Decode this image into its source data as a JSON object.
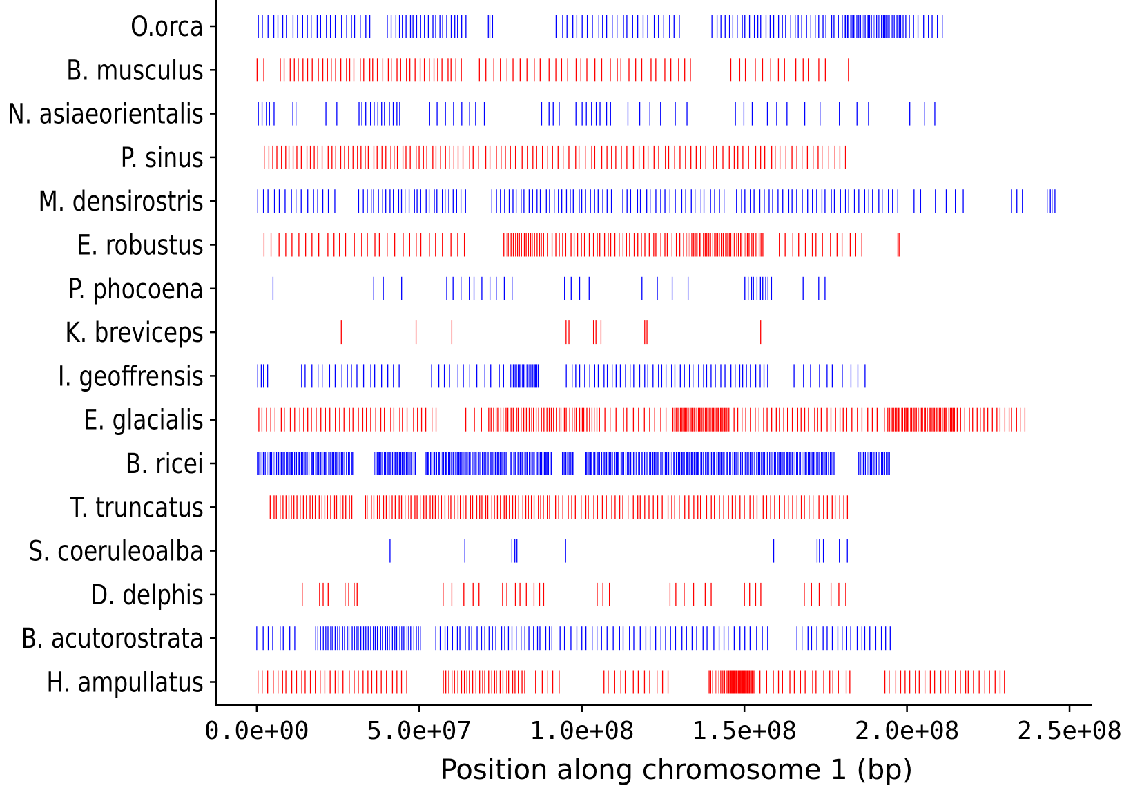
{
  "chart_data": {
    "type": "strip",
    "title": "",
    "xlabel": "Position along chromosome 1 (bp)",
    "ylabel": "",
    "xlim": [
      -12500000,
      257000000
    ],
    "x_ticks": [
      0,
      50000000,
      100000000,
      150000000,
      200000000,
      250000000
    ],
    "x_tick_labels": [
      "0.0e+00",
      "5.0e+07",
      "1.0e+08",
      "1.5e+08",
      "2.0e+08",
      "2.5e+08"
    ],
    "colors": {
      "blue": "#0000ff",
      "red": "#ff0000"
    },
    "series": [
      {
        "name": "O.orca",
        "color": "blue",
        "ranges": [
          [
            0,
            36000000,
            24
          ],
          [
            40000000,
            65000000,
            22
          ],
          [
            71000000,
            73000000,
            3
          ],
          [
            92000000,
            131000000,
            25
          ],
          [
            140000000,
            180000000,
            32
          ],
          [
            180000000,
            200000000,
            40
          ],
          [
            200000000,
            212000000,
            8
          ]
        ]
      },
      {
        "name": "B. musculus",
        "color": "red",
        "ranges": [
          [
            0,
            3000000,
            2
          ],
          [
            7000000,
            64000000,
            40
          ],
          [
            68000000,
            135000000,
            32
          ],
          [
            145000000,
            177000000,
            13
          ],
          [
            182000000,
            183000000,
            1
          ]
        ]
      },
      {
        "name": "N. asiaeorientalis",
        "color": "blue",
        "ranges": [
          [
            0,
            6000000,
            5
          ],
          [
            11000000,
            13000000,
            2
          ],
          [
            21000000,
            26000000,
            2
          ],
          [
            31000000,
            45000000,
            12
          ],
          [
            53000000,
            72000000,
            8
          ],
          [
            87000000,
            95000000,
            4
          ],
          [
            98000000,
            110000000,
            8
          ],
          [
            113000000,
            135000000,
            6
          ],
          [
            146000000,
            165000000,
            6
          ],
          [
            168000000,
            192000000,
            5
          ],
          [
            200000000,
            211000000,
            3
          ]
        ]
      },
      {
        "name": "P. sinus",
        "color": "red",
        "ranges": [
          [
            2000000,
            60000000,
            45
          ],
          [
            60000000,
            182000000,
            75
          ]
        ]
      },
      {
        "name": "M. densirostris",
        "color": "blue",
        "ranges": [
          [
            0,
            25000000,
            15
          ],
          [
            31000000,
            65000000,
            28
          ],
          [
            72000000,
            110000000,
            30
          ],
          [
            112000000,
            145000000,
            22
          ],
          [
            147000000,
            198000000,
            35
          ],
          [
            201000000,
            220000000,
            6
          ],
          [
            232000000,
            237000000,
            3
          ],
          [
            243000000,
            246000000,
            4
          ]
        ]
      },
      {
        "name": "E. robustus",
        "color": "red",
        "ranges": [
          [
            2000000,
            65000000,
            30
          ],
          [
            76000000,
            88000000,
            18
          ],
          [
            88000000,
            132000000,
            38
          ],
          [
            132000000,
            156000000,
            42
          ],
          [
            160000000,
            188000000,
            14
          ],
          [
            197000000,
            198000000,
            2
          ]
        ]
      },
      {
        "name": "P. phocoena",
        "color": "blue",
        "ranges": [
          [
            5000000,
            6000000,
            1
          ],
          [
            34000000,
            48000000,
            3
          ],
          [
            58000000,
            80000000,
            10
          ],
          [
            94000000,
            104000000,
            4
          ],
          [
            117000000,
            137000000,
            4
          ],
          [
            150000000,
            159000000,
            10
          ],
          [
            168000000,
            178000000,
            3
          ]
        ]
      },
      {
        "name": "K. breviceps",
        "color": "red",
        "ranges": [
          [
            26000000,
            27000000,
            1
          ],
          [
            49000000,
            50000000,
            1
          ],
          [
            60000000,
            61000000,
            1
          ],
          [
            95000000,
            97000000,
            2
          ],
          [
            103000000,
            107000000,
            3
          ],
          [
            119000000,
            121000000,
            2
          ],
          [
            155000000,
            156000000,
            1
          ]
        ]
      },
      {
        "name": "I. geoffrensis",
        "color": "blue",
        "ranges": [
          [
            0,
            4000000,
            4
          ],
          [
            13000000,
            45000000,
            18
          ],
          [
            53000000,
            78000000,
            12
          ],
          [
            78000000,
            87000000,
            20
          ],
          [
            95000000,
            148000000,
            38
          ],
          [
            148000000,
            158000000,
            8
          ],
          [
            165000000,
            189000000,
            10
          ]
        ]
      },
      {
        "name": "E. glacialis",
        "color": "red",
        "ranges": [
          [
            0,
            56000000,
            40
          ],
          [
            63000000,
            71000000,
            3
          ],
          [
            71000000,
            106000000,
            45
          ],
          [
            107000000,
            127000000,
            12
          ],
          [
            128000000,
            145000000,
            40
          ],
          [
            145000000,
            184000000,
            30
          ],
          [
            184000000,
            194000000,
            6
          ],
          [
            194000000,
            215000000,
            45
          ],
          [
            215000000,
            237000000,
            18
          ]
        ]
      },
      {
        "name": "B. ricei",
        "color": "blue",
        "ranges": [
          [
            0,
            30000000,
            60
          ],
          [
            36000000,
            49000000,
            30
          ],
          [
            52000000,
            77000000,
            55
          ],
          [
            78000000,
            91000000,
            30
          ],
          [
            94000000,
            98000000,
            8
          ],
          [
            101000000,
            160000000,
            120
          ],
          [
            160000000,
            178000000,
            40
          ],
          [
            185000000,
            195000000,
            20
          ]
        ]
      },
      {
        "name": "T. truncatus",
        "color": "red",
        "ranges": [
          [
            4000000,
            30000000,
            28
          ],
          [
            33000000,
            90000000,
            60
          ],
          [
            90000000,
            183000000,
            70
          ]
        ]
      },
      {
        "name": "S. coeruleoalba",
        "color": "blue",
        "ranges": [
          [
            41000000,
            42000000,
            1
          ],
          [
            64000000,
            65000000,
            1
          ],
          [
            78000000,
            81000000,
            3
          ],
          [
            95000000,
            96000000,
            1
          ],
          [
            159000000,
            160000000,
            1
          ],
          [
            172000000,
            175000000,
            3
          ],
          [
            178000000,
            183000000,
            2
          ]
        ]
      },
      {
        "name": "D. delphis",
        "color": "red",
        "ranges": [
          [
            14000000,
            15000000,
            1
          ],
          [
            19000000,
            23000000,
            3
          ],
          [
            27000000,
            32000000,
            4
          ],
          [
            57000000,
            71000000,
            5
          ],
          [
            75000000,
            90000000,
            8
          ],
          [
            104000000,
            110000000,
            3
          ],
          [
            126000000,
            142000000,
            6
          ],
          [
            150000000,
            156000000,
            4
          ],
          [
            168000000,
            183000000,
            6
          ]
        ]
      },
      {
        "name": "B. acutorostrata",
        "color": "blue",
        "ranges": [
          [
            0,
            13000000,
            8
          ],
          [
            18000000,
            51000000,
            45
          ],
          [
            55000000,
            92000000,
            30
          ],
          [
            93000000,
            158000000,
            40
          ],
          [
            166000000,
            196000000,
            20
          ]
        ]
      },
      {
        "name": "H. ampullatus",
        "color": "red",
        "ranges": [
          [
            0,
            47000000,
            32
          ],
          [
            57000000,
            83000000,
            28
          ],
          [
            85000000,
            95000000,
            5
          ],
          [
            106000000,
            128000000,
            12
          ],
          [
            139000000,
            145000000,
            10
          ],
          [
            145000000,
            153000000,
            30
          ],
          [
            153000000,
            184000000,
            18
          ],
          [
            193000000,
            231000000,
            25
          ]
        ]
      }
    ]
  }
}
